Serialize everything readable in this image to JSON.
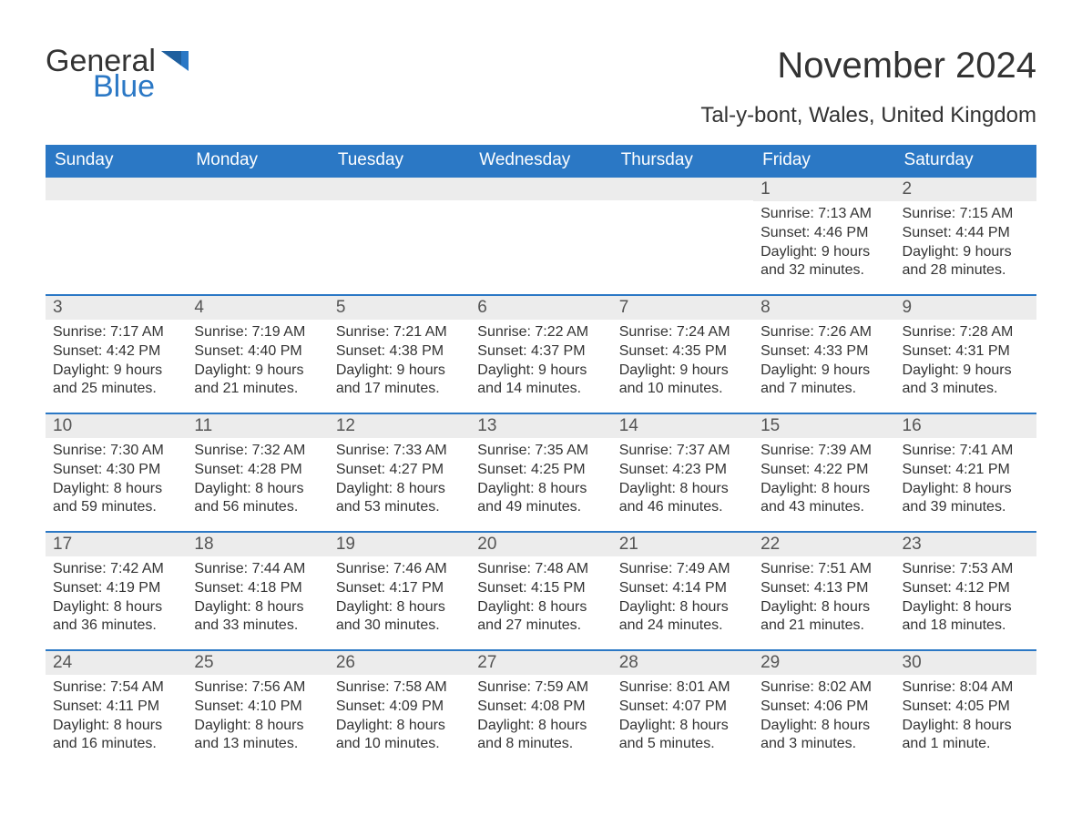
{
  "logo": {
    "part1": "General",
    "part2": "Blue"
  },
  "title": "November 2024",
  "location": "Tal-y-bont, Wales, United Kingdom",
  "columns": [
    "Sunday",
    "Monday",
    "Tuesday",
    "Wednesday",
    "Thursday",
    "Friday",
    "Saturday"
  ],
  "colors": {
    "header_bg": "#2b78c5",
    "header_text": "#ffffff",
    "daybar_bg": "#ececec",
    "daybar_border": "#2b78c5",
    "body_text": "#333333",
    "background": "#ffffff"
  },
  "typography": {
    "title_fontsize": 40,
    "location_fontsize": 24,
    "header_fontsize": 19,
    "daynum_fontsize": 19,
    "body_fontsize": 16
  },
  "grid": {
    "leading_blanks": 5,
    "days": [
      {
        "n": 1,
        "sunrise": "7:13 AM",
        "sunset": "4:46 PM",
        "daylight": "9 hours and 32 minutes."
      },
      {
        "n": 2,
        "sunrise": "7:15 AM",
        "sunset": "4:44 PM",
        "daylight": "9 hours and 28 minutes."
      },
      {
        "n": 3,
        "sunrise": "7:17 AM",
        "sunset": "4:42 PM",
        "daylight": "9 hours and 25 minutes."
      },
      {
        "n": 4,
        "sunrise": "7:19 AM",
        "sunset": "4:40 PM",
        "daylight": "9 hours and 21 minutes."
      },
      {
        "n": 5,
        "sunrise": "7:21 AM",
        "sunset": "4:38 PM",
        "daylight": "9 hours and 17 minutes."
      },
      {
        "n": 6,
        "sunrise": "7:22 AM",
        "sunset": "4:37 PM",
        "daylight": "9 hours and 14 minutes."
      },
      {
        "n": 7,
        "sunrise": "7:24 AM",
        "sunset": "4:35 PM",
        "daylight": "9 hours and 10 minutes."
      },
      {
        "n": 8,
        "sunrise": "7:26 AM",
        "sunset": "4:33 PM",
        "daylight": "9 hours and 7 minutes."
      },
      {
        "n": 9,
        "sunrise": "7:28 AM",
        "sunset": "4:31 PM",
        "daylight": "9 hours and 3 minutes."
      },
      {
        "n": 10,
        "sunrise": "7:30 AM",
        "sunset": "4:30 PM",
        "daylight": "8 hours and 59 minutes."
      },
      {
        "n": 11,
        "sunrise": "7:32 AM",
        "sunset": "4:28 PM",
        "daylight": "8 hours and 56 minutes."
      },
      {
        "n": 12,
        "sunrise": "7:33 AM",
        "sunset": "4:27 PM",
        "daylight": "8 hours and 53 minutes."
      },
      {
        "n": 13,
        "sunrise": "7:35 AM",
        "sunset": "4:25 PM",
        "daylight": "8 hours and 49 minutes."
      },
      {
        "n": 14,
        "sunrise": "7:37 AM",
        "sunset": "4:23 PM",
        "daylight": "8 hours and 46 minutes."
      },
      {
        "n": 15,
        "sunrise": "7:39 AM",
        "sunset": "4:22 PM",
        "daylight": "8 hours and 43 minutes."
      },
      {
        "n": 16,
        "sunrise": "7:41 AM",
        "sunset": "4:21 PM",
        "daylight": "8 hours and 39 minutes."
      },
      {
        "n": 17,
        "sunrise": "7:42 AM",
        "sunset": "4:19 PM",
        "daylight": "8 hours and 36 minutes."
      },
      {
        "n": 18,
        "sunrise": "7:44 AM",
        "sunset": "4:18 PM",
        "daylight": "8 hours and 33 minutes."
      },
      {
        "n": 19,
        "sunrise": "7:46 AM",
        "sunset": "4:17 PM",
        "daylight": "8 hours and 30 minutes."
      },
      {
        "n": 20,
        "sunrise": "7:48 AM",
        "sunset": "4:15 PM",
        "daylight": "8 hours and 27 minutes."
      },
      {
        "n": 21,
        "sunrise": "7:49 AM",
        "sunset": "4:14 PM",
        "daylight": "8 hours and 24 minutes."
      },
      {
        "n": 22,
        "sunrise": "7:51 AM",
        "sunset": "4:13 PM",
        "daylight": "8 hours and 21 minutes."
      },
      {
        "n": 23,
        "sunrise": "7:53 AM",
        "sunset": "4:12 PM",
        "daylight": "8 hours and 18 minutes."
      },
      {
        "n": 24,
        "sunrise": "7:54 AM",
        "sunset": "4:11 PM",
        "daylight": "8 hours and 16 minutes."
      },
      {
        "n": 25,
        "sunrise": "7:56 AM",
        "sunset": "4:10 PM",
        "daylight": "8 hours and 13 minutes."
      },
      {
        "n": 26,
        "sunrise": "7:58 AM",
        "sunset": "4:09 PM",
        "daylight": "8 hours and 10 minutes."
      },
      {
        "n": 27,
        "sunrise": "7:59 AM",
        "sunset": "4:08 PM",
        "daylight": "8 hours and 8 minutes."
      },
      {
        "n": 28,
        "sunrise": "8:01 AM",
        "sunset": "4:07 PM",
        "daylight": "8 hours and 5 minutes."
      },
      {
        "n": 29,
        "sunrise": "8:02 AM",
        "sunset": "4:06 PM",
        "daylight": "8 hours and 3 minutes."
      },
      {
        "n": 30,
        "sunrise": "8:04 AM",
        "sunset": "4:05 PM",
        "daylight": "8 hours and 1 minute."
      }
    ]
  },
  "labels": {
    "sunrise_prefix": "Sunrise: ",
    "sunset_prefix": "Sunset: ",
    "daylight_prefix": "Daylight: "
  }
}
